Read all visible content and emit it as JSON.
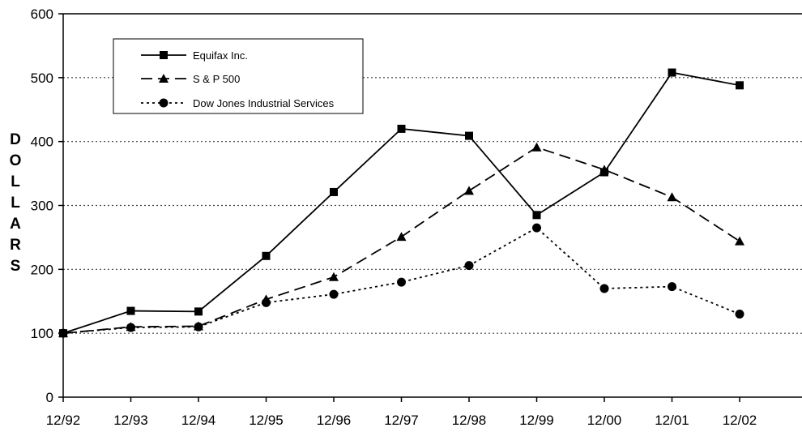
{
  "chart_data": {
    "type": "line",
    "categories": [
      "12/92",
      "12/93",
      "12/94",
      "12/95",
      "12/96",
      "12/97",
      "12/98",
      "12/99",
      "12/00",
      "12/01",
      "12/02"
    ],
    "series": [
      {
        "name": "Equifax Inc.",
        "marker": "square",
        "dash": "solid",
        "values": [
          100,
          135,
          134,
          221,
          321,
          420,
          409,
          285,
          352,
          508,
          488
        ]
      },
      {
        "name": "S & P 500",
        "marker": "triangle",
        "dash": "dashed",
        "values": [
          100,
          110,
          111,
          153,
          188,
          251,
          323,
          391,
          356,
          313,
          244
        ]
      },
      {
        "name": "Dow Jones Industrial Services",
        "marker": "circle",
        "dash": "dotted",
        "values": [
          100,
          109,
          110,
          148,
          161,
          180,
          206,
          265,
          170,
          173,
          130
        ]
      }
    ],
    "ylabel": "DOLLARS",
    "ylim": [
      0,
      600
    ],
    "yticks": [
      "0",
      "100",
      "200",
      "300",
      "400",
      "500",
      "600"
    ],
    "grid": "horizontal dotted",
    "legend_position": "top-left",
    "colors": {
      "line": "#000000",
      "grid": "#444444",
      "background": "#ffffff"
    }
  }
}
